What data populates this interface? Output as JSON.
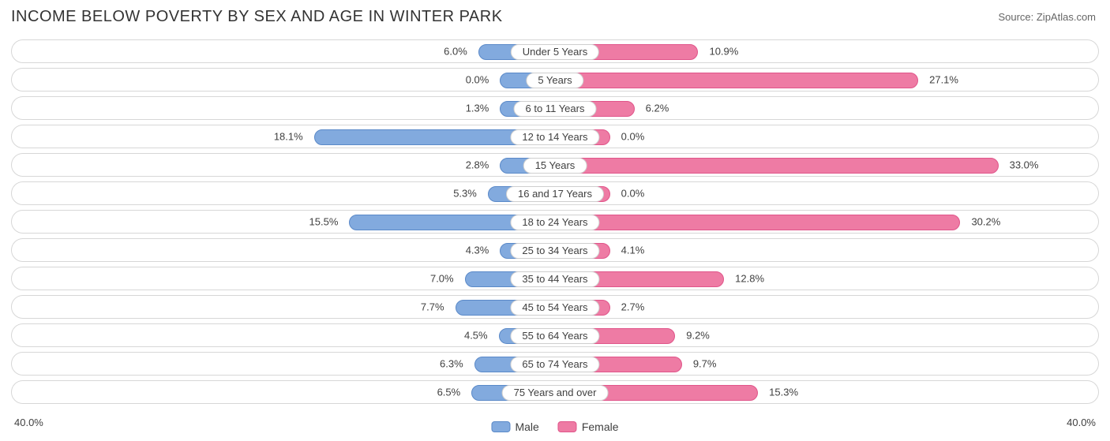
{
  "title": "INCOME BELOW POVERTY BY SEX AND AGE IN WINTER PARK",
  "source": "Source: ZipAtlas.com",
  "axis_max": 40.0,
  "axis_label_left": "40.0%",
  "axis_label_right": "40.0%",
  "colors": {
    "male_fill": "#82aade",
    "male_border": "#5a89c8",
    "female_fill": "#ee7ba4",
    "female_border": "#e0558a",
    "track_border": "#d7d7d7",
    "background": "#ffffff",
    "text": "#404040"
  },
  "legend": {
    "male": "Male",
    "female": "Female"
  },
  "rows": [
    {
      "category": "Under 5 Years",
      "male": 6.0,
      "male_label": "6.0%",
      "female": 10.9,
      "female_label": "10.9%"
    },
    {
      "category": "5 Years",
      "male": 0.0,
      "male_label": "0.0%",
      "female": 27.1,
      "female_label": "27.1%"
    },
    {
      "category": "6 to 11 Years",
      "male": 1.3,
      "male_label": "1.3%",
      "female": 6.2,
      "female_label": "6.2%"
    },
    {
      "category": "12 to 14 Years",
      "male": 18.1,
      "male_label": "18.1%",
      "female": 0.0,
      "female_label": "0.0%"
    },
    {
      "category": "15 Years",
      "male": 2.8,
      "male_label": "2.8%",
      "female": 33.0,
      "female_label": "33.0%"
    },
    {
      "category": "16 and 17 Years",
      "male": 5.3,
      "male_label": "5.3%",
      "female": 0.0,
      "female_label": "0.0%"
    },
    {
      "category": "18 to 24 Years",
      "male": 15.5,
      "male_label": "15.5%",
      "female": 30.2,
      "female_label": "30.2%"
    },
    {
      "category": "25 to 34 Years",
      "male": 4.3,
      "male_label": "4.3%",
      "female": 4.1,
      "female_label": "4.1%"
    },
    {
      "category": "35 to 44 Years",
      "male": 7.0,
      "male_label": "7.0%",
      "female": 12.8,
      "female_label": "12.8%"
    },
    {
      "category": "45 to 54 Years",
      "male": 7.7,
      "male_label": "7.7%",
      "female": 2.7,
      "female_label": "2.7%"
    },
    {
      "category": "55 to 64 Years",
      "male": 4.5,
      "male_label": "4.5%",
      "female": 9.2,
      "female_label": "9.2%"
    },
    {
      "category": "65 to 74 Years",
      "male": 6.3,
      "male_label": "6.3%",
      "female": 9.7,
      "female_label": "9.7%"
    },
    {
      "category": "75 Years and over",
      "male": 6.5,
      "male_label": "6.5%",
      "female": 15.3,
      "female_label": "15.3%"
    }
  ]
}
